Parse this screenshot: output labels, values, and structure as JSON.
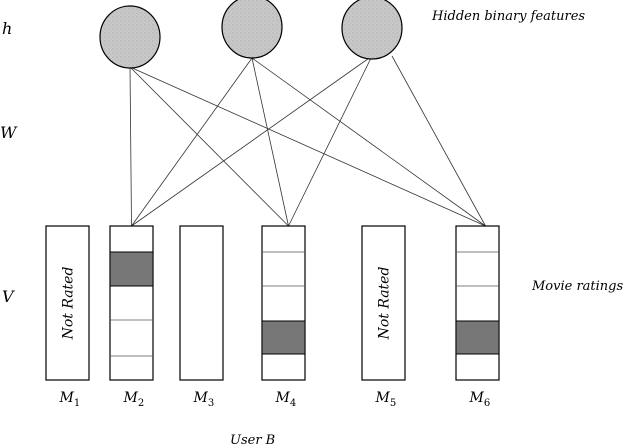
{
  "rows": {
    "h": "h",
    "w": "W",
    "v": "V"
  },
  "annotations": {
    "hidden": "Hidden binary features",
    "ratings": "Movie ratings",
    "user": "User B"
  },
  "hidden_units": 3,
  "not_rated_label": "Not Rated",
  "movies": [
    {
      "name": "M",
      "sub": "1",
      "rated": false
    },
    {
      "name": "M",
      "sub": "2",
      "rated": true,
      "filled_level": 2
    },
    {
      "name": "M",
      "sub": "3",
      "rated": false,
      "blank": true
    },
    {
      "name": "M",
      "sub": "4",
      "rated": true,
      "filled_level": 5
    },
    {
      "name": "M",
      "sub": "5",
      "rated": false
    },
    {
      "name": "M",
      "sub": "6",
      "rated": true,
      "filled_level": 5
    }
  ],
  "colors": {
    "hidden_fill": "#c8c8c8",
    "rating_fill": "#777777",
    "stroke": "#000000",
    "edge": "#333333"
  }
}
